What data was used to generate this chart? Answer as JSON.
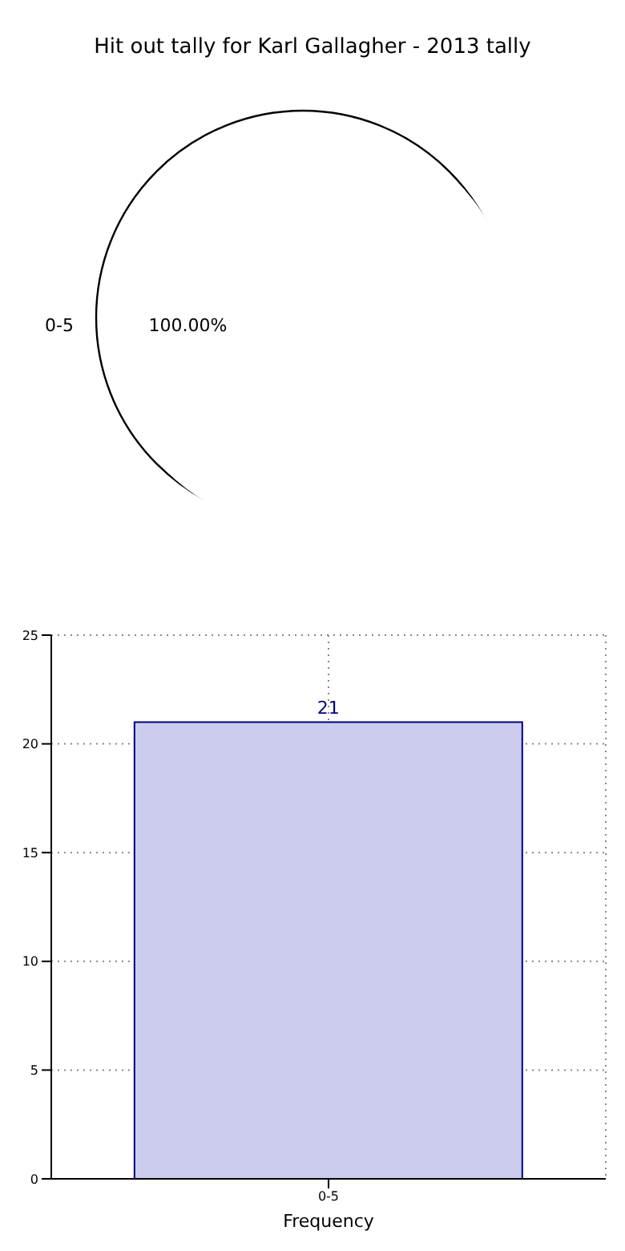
{
  "chart_data": [
    {
      "type": "pie",
      "title": "Hit out tally for Karl Gallagher - 2013 tally",
      "categories": [
        "0-5"
      ],
      "values": [
        100
      ],
      "colors": [
        "#ffffff"
      ],
      "value_labels": [
        "100.00%"
      ]
    },
    {
      "type": "bar",
      "xlabel": "Frequency",
      "categories": [
        "0-5"
      ],
      "values": [
        21
      ],
      "color": "#ccccee",
      "ylim": [
        0,
        25
      ],
      "yticks": [
        0,
        5,
        10,
        15,
        20,
        25
      ],
      "grid": true,
      "data_labels": true
    }
  ]
}
